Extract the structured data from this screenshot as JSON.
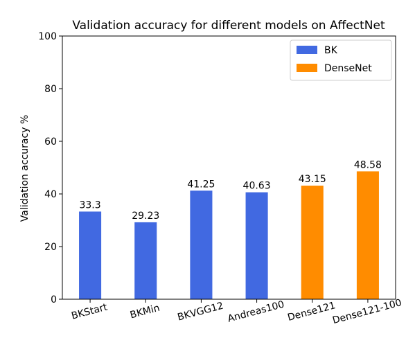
{
  "chart_data": {
    "type": "bar",
    "title": "Validation accuracy for different models on AffectNet",
    "xlabel": "",
    "ylabel": "Validation accuracy %",
    "ylim": [
      0,
      100
    ],
    "yticks": [
      0,
      20,
      40,
      60,
      80,
      100
    ],
    "categories": [
      "BKStart",
      "BKMin",
      "BKVGG12",
      "Andreas100",
      "Dense121",
      "Dense121-100"
    ],
    "values": [
      33.3,
      29.23,
      41.25,
      40.63,
      43.15,
      48.58
    ],
    "value_labels": [
      "33.3",
      "29.23",
      "41.25",
      "40.63",
      "43.15",
      "48.58"
    ],
    "groups": [
      "BK",
      "BK",
      "BK",
      "BK",
      "DenseNet",
      "DenseNet"
    ],
    "legend": {
      "placement": "top-right",
      "entries": [
        {
          "name": "BK",
          "color": "#4169e1"
        },
        {
          "name": "DenseNet",
          "color": "#ff8c00"
        }
      ]
    },
    "colors": {
      "BK": "#4169e1",
      "DenseNet": "#ff8c00"
    },
    "grid": false
  }
}
